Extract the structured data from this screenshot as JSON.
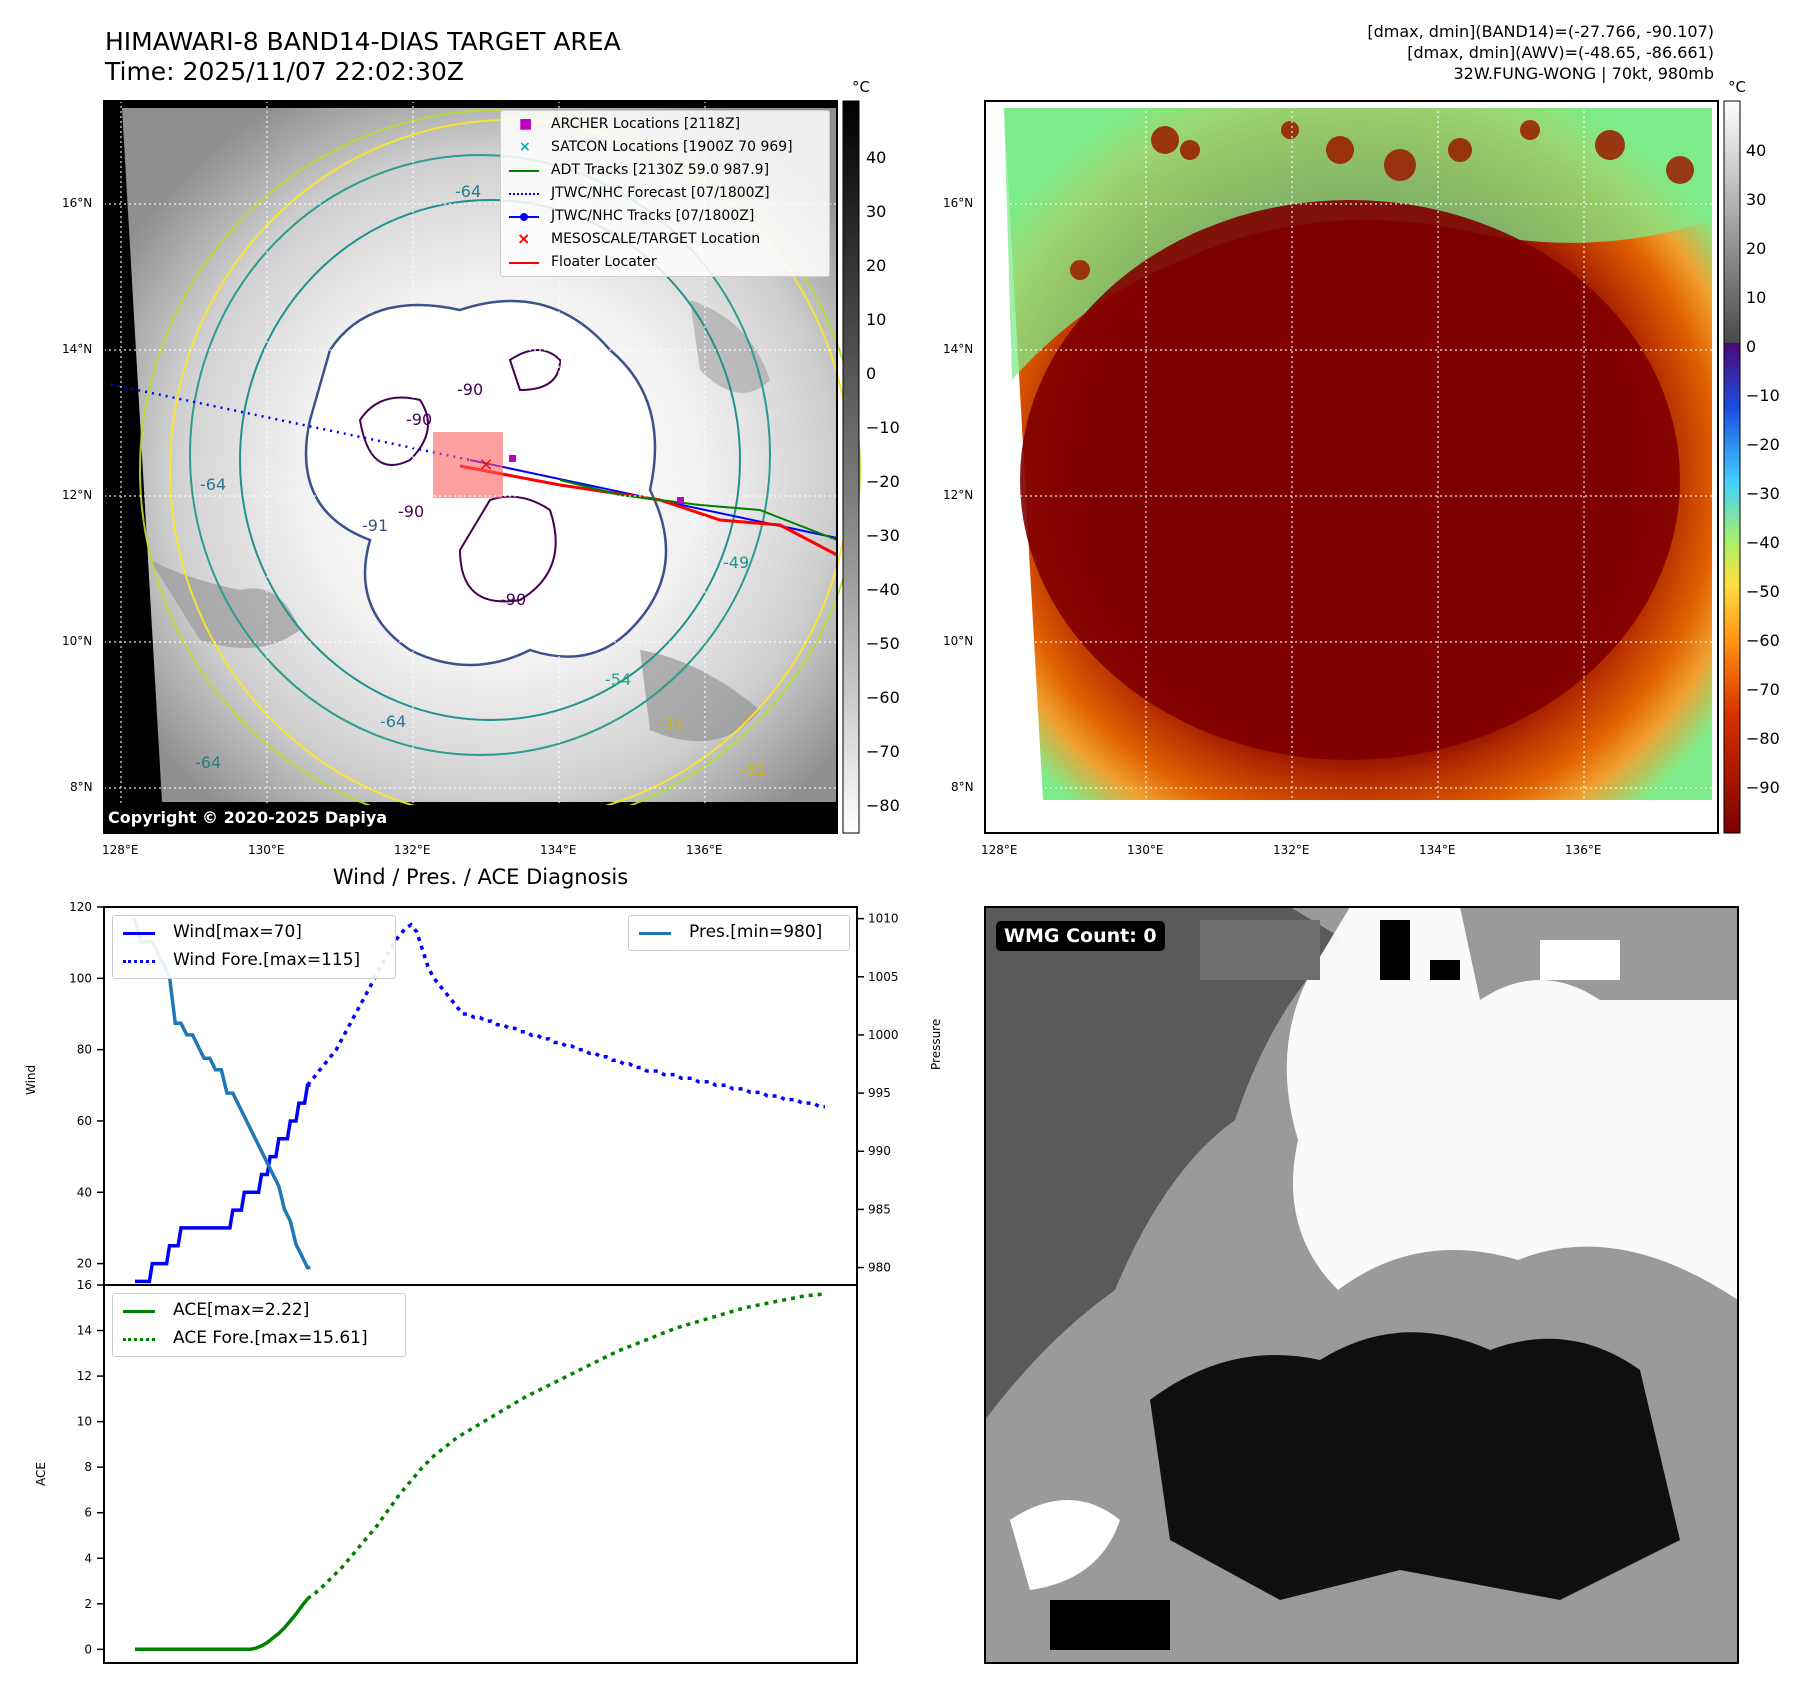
{
  "left_map": {
    "title_line1": "HIMAWARI-8 BAND14-DIAS TARGET AREA",
    "title_line2": "Time: 2025/11/07 22:02:30Z",
    "copyright": "Copyright © 2020-2025 Dapiya",
    "lat_labels": [
      "16°N",
      "14°N",
      "12°N",
      "10°N",
      "8°N"
    ],
    "lon_labels": [
      "128°E",
      "130°E",
      "132°E",
      "134°E",
      "136°E"
    ],
    "contour_labels": [
      "-90",
      "-90",
      "-90",
      "-90",
      "-64",
      "-64",
      "-64",
      "-64",
      "-54",
      "-31",
      "-31",
      "-91",
      "-49"
    ],
    "colorbar_unit": "°C",
    "colorbar_ticks": [
      "40",
      "30",
      "20",
      "10",
      "0",
      "−10",
      "−20",
      "−30",
      "−40",
      "−50",
      "−60",
      "−70",
      "−80"
    ],
    "legend": [
      {
        "label": "ARCHER Locations [2118Z]",
        "color": "#c000c0",
        "marker": "square"
      },
      {
        "label": "SATCON Locations [1900Z 70 969]",
        "color": "#00b5c0",
        "marker": "x"
      },
      {
        "label": "ADT Tracks [2130Z 59.0 987.9]",
        "color": "#008000",
        "marker": "line"
      },
      {
        "label": "JTWC/NHC Forecast [07/1800Z]",
        "color": "#0000ff",
        "marker": "dotted"
      },
      {
        "label": "JTWC/NHC Tracks [07/1800Z]",
        "color": "#0000ff",
        "marker": "line-dot"
      },
      {
        "label": "MESOSCALE/TARGET Location",
        "color": "#ff0000",
        "marker": "x"
      },
      {
        "label": "Floater Locater",
        "color": "#ff0000",
        "marker": "line"
      }
    ]
  },
  "right_map": {
    "info_line1": "[dmax, dmin](BAND14)=(-27.766, -90.107)",
    "info_line2": "[dmax, dmin](AWV)=(-48.65, -86.661)",
    "info_line3": "32W.FUNG-WONG | 70kt, 980mb",
    "lat_labels": [
      "16°N",
      "14°N",
      "12°N",
      "10°N",
      "8°N"
    ],
    "lon_labels": [
      "128°E",
      "130°E",
      "132°E",
      "134°E",
      "136°E"
    ],
    "colorbar_unit": "°C",
    "colorbar_ticks": [
      "40",
      "30",
      "20",
      "10",
      "0",
      "−10",
      "−20",
      "−30",
      "−40",
      "−50",
      "−60",
      "−70",
      "−80",
      "−90"
    ]
  },
  "chart_data": [
    {
      "type": "line",
      "title": "Wind / Pres. / ACE Diagnosis",
      "ylabel": "Wind",
      "ylabel_right": "Pressure",
      "ylim": [
        14,
        120
      ],
      "ylim_right": [
        978.5,
        1011
      ],
      "yticks": [
        20,
        40,
        60,
        80,
        100,
        120
      ],
      "yticks_right": [
        980,
        985,
        990,
        995,
        1000,
        1005,
        1010
      ],
      "series": [
        {
          "name": "Wind[max=70]",
          "style": "solid",
          "color": "#0000ff",
          "axis": "left",
          "x": [
            0,
            1,
            2,
            3,
            4,
            5,
            6,
            7,
            8,
            9,
            10,
            11,
            12,
            13,
            14,
            15,
            16,
            17,
            18,
            19,
            20,
            21,
            22,
            23,
            24,
            25,
            26,
            27,
            28,
            29,
            30,
            31,
            32,
            33,
            34,
            35,
            36,
            37,
            38,
            39,
            40,
            41,
            42,
            43,
            44,
            45,
            46,
            47,
            48,
            49,
            50,
            51,
            52,
            53,
            54,
            55,
            56,
            57,
            58,
            59,
            60,
            61
          ],
          "y": [
            15,
            15,
            15,
            15,
            15,
            15,
            20,
            20,
            20,
            20,
            20,
            20,
            25,
            25,
            25,
            25,
            30,
            30,
            30,
            30,
            30,
            30,
            30,
            30,
            30,
            30,
            30,
            30,
            30,
            30,
            30,
            30,
            30,
            30,
            35,
            35,
            35,
            35,
            40,
            40,
            40,
            40,
            40,
            40,
            45,
            45,
            45,
            50,
            50,
            50,
            55,
            55,
            55,
            55,
            60,
            60,
            60,
            65,
            65,
            65,
            70,
            70
          ]
        },
        {
          "name": "Wind Fore.[max=115]",
          "style": "dotted",
          "color": "#0000ff",
          "axis": "left",
          "x": [
            60,
            62,
            64,
            66,
            68,
            70,
            72,
            74,
            76,
            78,
            80,
            82,
            84,
            86,
            88,
            90,
            92,
            94,
            96,
            98,
            100,
            102,
            104,
            106,
            108,
            110,
            112,
            114,
            116,
            118,
            120,
            122,
            124,
            126,
            128,
            130,
            132,
            134,
            136,
            138,
            140,
            142,
            144,
            146,
            148,
            150,
            152,
            154,
            156,
            158,
            160,
            162,
            164,
            166,
            168,
            170,
            172,
            174,
            176,
            178,
            180,
            182,
            184,
            186,
            188,
            190,
            192,
            194,
            196,
            198,
            200,
            202,
            204,
            206,
            208,
            210,
            212,
            214,
            216,
            218,
            220,
            222,
            224,
            226,
            228,
            230,
            232,
            234,
            236,
            238,
            240
          ],
          "y": [
            70,
            72,
            74,
            76,
            78,
            80,
            83,
            86,
            89,
            92,
            95,
            98,
            101,
            104,
            107,
            110,
            112,
            114,
            115,
            113,
            108,
            103,
            100,
            98,
            96,
            94,
            92,
            90,
            90,
            89,
            89,
            88,
            88,
            87,
            87,
            86,
            86,
            85,
            85,
            84,
            84,
            83,
            83,
            82,
            82,
            81,
            81,
            80,
            80,
            79,
            79,
            78,
            78,
            77,
            77,
            76,
            76,
            75,
            75,
            74,
            74,
            74,
            73,
            73,
            73,
            72,
            72,
            72,
            71,
            71,
            71,
            70,
            70,
            70,
            69,
            69,
            69,
            68,
            68,
            68,
            67,
            67,
            67,
            66,
            66,
            66,
            65,
            65,
            65,
            64,
            64
          ]
        },
        {
          "name": "Pres.[min=980]",
          "style": "solid",
          "color": "#1f77b4",
          "axis": "right",
          "x": [
            0,
            2,
            4,
            6,
            8,
            10,
            12,
            14,
            16,
            18,
            20,
            22,
            24,
            26,
            28,
            30,
            32,
            34,
            36,
            38,
            40,
            42,
            44,
            46,
            48,
            50,
            52,
            54,
            56,
            58,
            60,
            61
          ],
          "y": [
            1010,
            1008,
            1008,
            1008,
            1007,
            1006,
            1005,
            1001,
            1001,
            1000,
            1000,
            999,
            998,
            998,
            997,
            997,
            995,
            995,
            994,
            993,
            992,
            991,
            990,
            989,
            988,
            987,
            985,
            984,
            982,
            981,
            980,
            980
          ]
        }
      ],
      "legend_left": [
        "Wind[max=70]",
        "Wind Fore.[max=115]"
      ],
      "legend_right": [
        "Pres.[min=980]"
      ]
    },
    {
      "type": "line",
      "ylabel": "ACE",
      "ylim": [
        -0.6,
        16
      ],
      "yticks": [
        0,
        2,
        4,
        6,
        8,
        10,
        12,
        14,
        16
      ],
      "series": [
        {
          "name": "ACE[max=2.22]",
          "style": "solid",
          "color": "#008000",
          "x": [
            0,
            5,
            10,
            15,
            20,
            25,
            30,
            35,
            40,
            42,
            44,
            46,
            48,
            50,
            52,
            54,
            56,
            58,
            60
          ],
          "y": [
            0,
            0,
            0,
            0,
            0,
            0,
            0,
            0,
            0,
            0.05,
            0.15,
            0.3,
            0.5,
            0.7,
            0.95,
            1.25,
            1.55,
            1.9,
            2.22
          ]
        },
        {
          "name": "ACE Fore.[max=15.61]",
          "style": "dotted",
          "color": "#008000",
          "x": [
            60,
            64,
            68,
            72,
            76,
            80,
            84,
            88,
            92,
            96,
            100,
            104,
            108,
            112,
            116,
            120,
            124,
            128,
            132,
            136,
            140,
            144,
            148,
            152,
            156,
            160,
            164,
            168,
            172,
            176,
            180,
            184,
            188,
            192,
            196,
            200,
            204,
            208,
            212,
            216,
            220,
            224,
            228,
            232,
            236,
            240
          ],
          "y": [
            2.22,
            2.6,
            3.1,
            3.6,
            4.2,
            4.8,
            5.4,
            6.1,
            6.8,
            7.4,
            8.0,
            8.5,
            8.9,
            9.3,
            9.6,
            9.9,
            10.2,
            10.5,
            10.8,
            11.1,
            11.35,
            11.6,
            11.85,
            12.1,
            12.35,
            12.6,
            12.85,
            13.1,
            13.3,
            13.5,
            13.7,
            13.9,
            14.1,
            14.25,
            14.4,
            14.55,
            14.7,
            14.85,
            15.0,
            15.1,
            15.2,
            15.3,
            15.4,
            15.5,
            15.56,
            15.61
          ]
        }
      ]
    }
  ],
  "wmg_panel": {
    "badge": "WMG Count: 0"
  }
}
